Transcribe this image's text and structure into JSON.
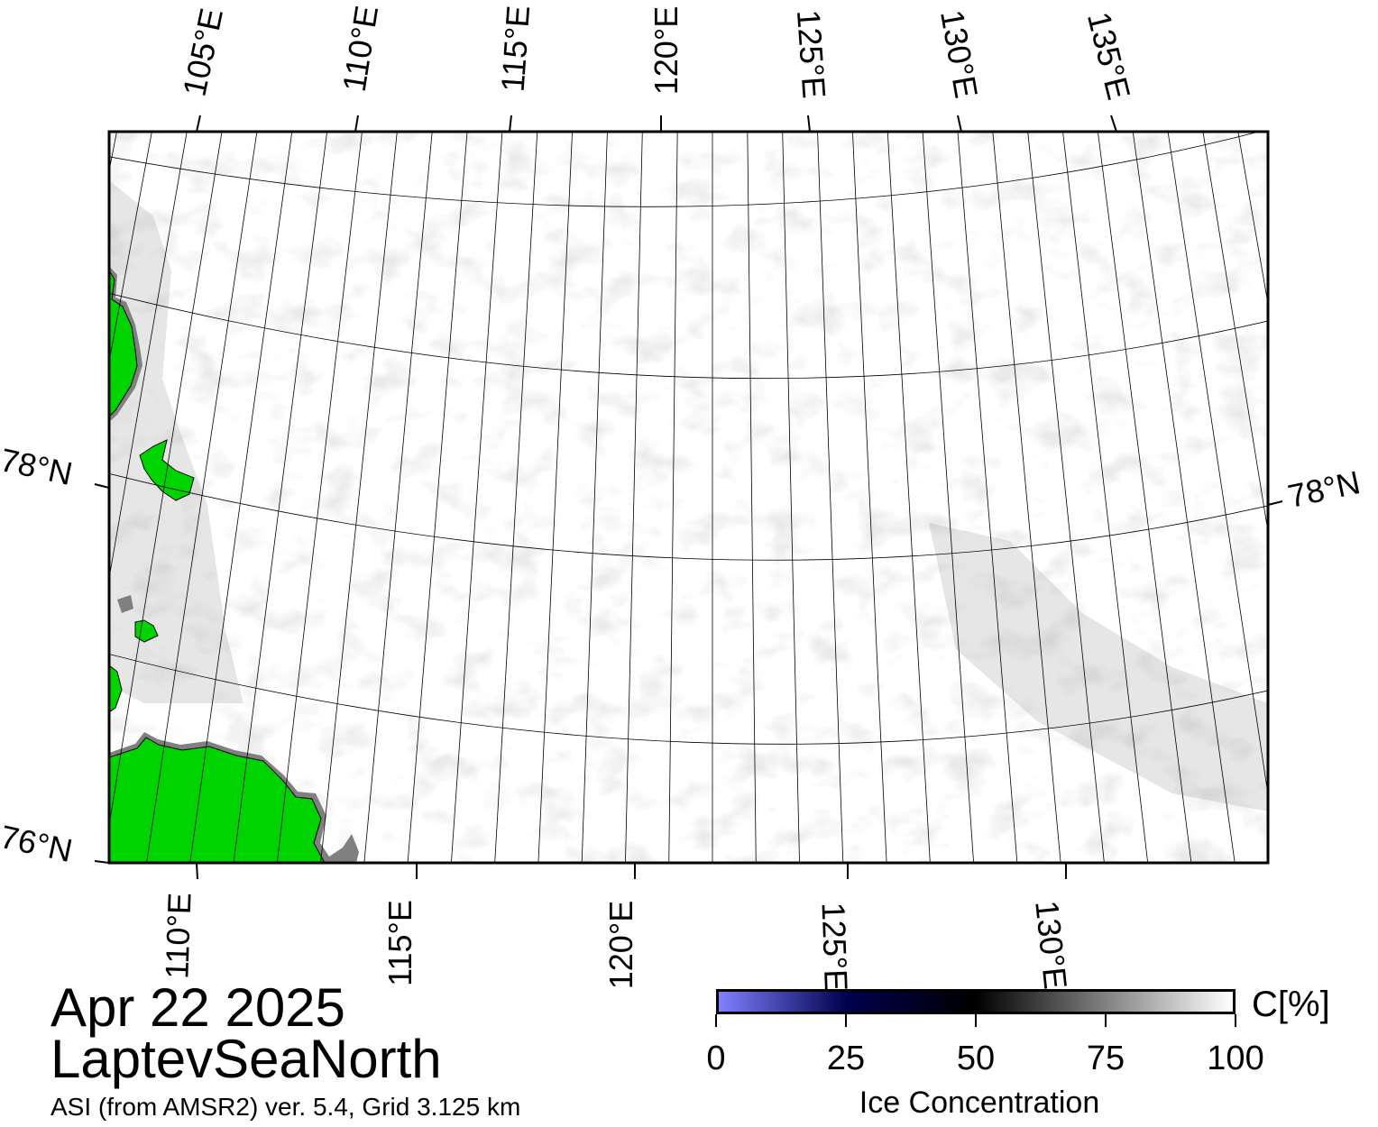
{
  "map": {
    "top_lon_labels": [
      "105°E",
      "110°E",
      "115°E",
      "120°E",
      "125°E",
      "130°E",
      "135°E"
    ],
    "bottom_lon_labels": [
      "110°E",
      "115°E",
      "120°E",
      "125°E",
      "130°E"
    ],
    "left_lat_labels": [
      "78°N",
      "76°N"
    ],
    "right_lat_labels": [
      "78°N"
    ],
    "colors": {
      "land": "#00d400",
      "frame": "#000000",
      "ocean_ice": "#ffffff"
    }
  },
  "title": {
    "date": "Apr 22 2025",
    "region": "LaptevSeaNorth",
    "source": "ASI (from AMSR2) ver. 5.4,  Grid 3.125 km"
  },
  "colorbar": {
    "unit": "C[%]",
    "label": "Ice Concentration",
    "ticks": [
      "0",
      "25",
      "50",
      "75",
      "100"
    ],
    "range": [
      0,
      100
    ],
    "colors": [
      "#8080ff",
      "#00004d",
      "#000000",
      "#808080",
      "#ffffff"
    ]
  }
}
